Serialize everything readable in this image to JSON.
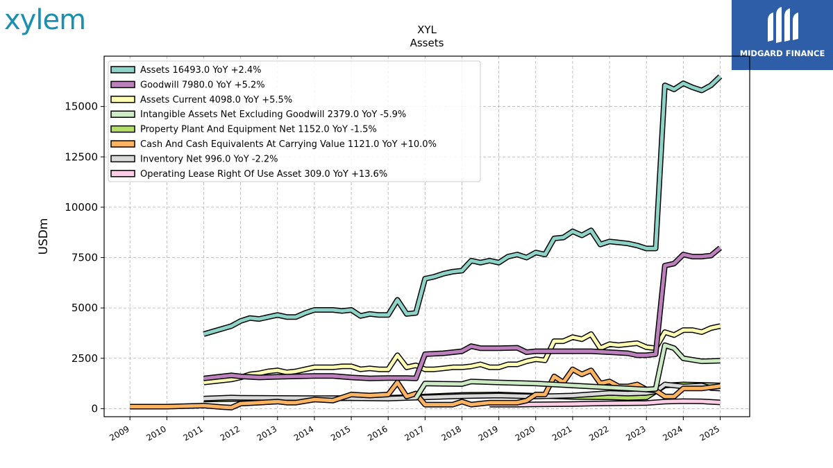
{
  "brand": {
    "left_logo": "xylem",
    "right_logo": "MIDGARD FINANCE"
  },
  "colors": {
    "Assets": "#8dd3c7",
    "Goodwill": "#bc80bd",
    "Assets Current": "#ffffb3",
    "Intangible": "#ccebc5",
    "PPE": "#b3de69",
    "Cash": "#fdb462",
    "Inventory": "#d9d9d9",
    "Lease": "#fccde5"
  },
  "chart_data": {
    "type": "line",
    "title": "XYL",
    "subtitle": "Assets",
    "xlabel": "",
    "ylabel": "USDm",
    "xlim": [
      2008.3,
      2025.8
    ],
    "ylim": [
      -400,
      17500
    ],
    "grid": true,
    "legend_position": "top-left",
    "x_ticks": [
      "2009",
      "2010",
      "2011",
      "2012",
      "2013",
      "2014",
      "2015",
      "2016",
      "2017",
      "2018",
      "2019",
      "2020",
      "2021",
      "2022",
      "2023",
      "2024",
      "2025"
    ],
    "y_ticks": [
      "0",
      "2500",
      "5000",
      "7500",
      "10000",
      "12500",
      "15000"
    ],
    "series": [
      {
        "name": "Assets",
        "legend": "Assets  16493.0 YoY +2.4%",
        "color": "#8dd3c7",
        "x": [
          2011.0,
          2011.75,
          2012.0,
          2012.25,
          2012.5,
          2012.75,
          2013.0,
          2013.25,
          2013.5,
          2013.75,
          2014.0,
          2014.25,
          2014.5,
          2014.75,
          2015.0,
          2015.25,
          2015.5,
          2015.75,
          2016.0,
          2016.25,
          2016.5,
          2016.75,
          2017.0,
          2017.25,
          2017.5,
          2017.75,
          2018.0,
          2018.25,
          2018.5,
          2018.75,
          2019.0,
          2019.25,
          2019.5,
          2019.75,
          2020.0,
          2020.25,
          2020.5,
          2020.75,
          2021.0,
          2021.25,
          2021.5,
          2021.75,
          2022.0,
          2022.25,
          2022.5,
          2022.75,
          2023.0,
          2023.25,
          2023.5,
          2023.75,
          2024.0,
          2024.25,
          2024.5,
          2024.75,
          2025.0
        ],
        "values": [
          3700,
          4100,
          4350,
          4500,
          4450,
          4550,
          4650,
          4550,
          4550,
          4750,
          4900,
          4900,
          4900,
          4850,
          4900,
          4600,
          4700,
          4650,
          4650,
          5400,
          4700,
          4750,
          6450,
          6550,
          6700,
          6800,
          6850,
          7350,
          7250,
          7350,
          7250,
          7550,
          7650,
          7500,
          7750,
          7650,
          8450,
          8500,
          8800,
          8600,
          8850,
          8150,
          8300,
          8250,
          8200,
          8100,
          7950,
          7950,
          16050,
          15850,
          16150,
          15950,
          15800,
          16050,
          16493
        ]
      },
      {
        "name": "Goodwill",
        "legend": "Goodwill  7980.0 YoY +5.2%",
        "color": "#bc80bd",
        "x": [
          2011.0,
          2011.75,
          2012.0,
          2012.5,
          2013.0,
          2013.5,
          2014.0,
          2014.5,
          2015.0,
          2015.5,
          2016.0,
          2016.5,
          2016.75,
          2017.0,
          2017.5,
          2018.0,
          2018.25,
          2018.5,
          2019.0,
          2019.5,
          2019.75,
          2020.0,
          2020.5,
          2021.0,
          2021.5,
          2022.0,
          2022.5,
          2022.75,
          2023.0,
          2023.25,
          2023.5,
          2023.75,
          2024.0,
          2024.25,
          2024.5,
          2024.75,
          2025.0
        ],
        "values": [
          1500,
          1650,
          1600,
          1550,
          1580,
          1600,
          1620,
          1620,
          1550,
          1500,
          1520,
          1520,
          1500,
          2700,
          2750,
          2850,
          3100,
          3000,
          3000,
          3020,
          2800,
          2850,
          2850,
          2850,
          2850,
          2800,
          2750,
          2650,
          2650,
          2700,
          7100,
          7200,
          7650,
          7550,
          7550,
          7600,
          7980
        ]
      },
      {
        "name": "Assets Current",
        "legend": "Assets Current  4098.0 YoY +5.5%",
        "color": "#ffffb3",
        "x": [
          2011.0,
          2011.75,
          2012.0,
          2012.25,
          2012.5,
          2012.75,
          2013.0,
          2013.25,
          2013.5,
          2013.75,
          2014.0,
          2014.25,
          2014.5,
          2014.75,
          2015.0,
          2015.25,
          2015.5,
          2015.75,
          2016.0,
          2016.25,
          2016.5,
          2016.75,
          2017.0,
          2017.25,
          2017.5,
          2017.75,
          2018.0,
          2018.25,
          2018.5,
          2018.75,
          2019.0,
          2019.25,
          2019.5,
          2019.75,
          2020.0,
          2020.25,
          2020.5,
          2020.75,
          2021.0,
          2021.25,
          2021.5,
          2021.75,
          2022.0,
          2022.25,
          2022.5,
          2022.75,
          2023.0,
          2023.25,
          2023.5,
          2023.75,
          2024.0,
          2024.25,
          2024.5,
          2024.75,
          2025.0
        ],
        "values": [
          1300,
          1450,
          1550,
          1700,
          1750,
          1850,
          1900,
          1800,
          1850,
          1950,
          2050,
          2050,
          2050,
          2100,
          2100,
          1950,
          2000,
          1950,
          1950,
          2650,
          2050,
          2150,
          1950,
          1950,
          2000,
          2050,
          2050,
          2100,
          2200,
          2050,
          2050,
          2200,
          2200,
          2350,
          2450,
          2400,
          3350,
          3350,
          3550,
          3450,
          3700,
          3000,
          3200,
          3150,
          3200,
          3250,
          3050,
          3000,
          3800,
          3650,
          3900,
          3900,
          3800,
          4000,
          4098
        ]
      },
      {
        "name": "Intangible Assets Net Excluding Goodwill",
        "legend": "Intangible Assets Net Excluding Goodwill  2379.0 YoY -5.9%",
        "color": "#ccebc5",
        "x": [
          2016.75,
          2017.0,
          2018.0,
          2018.25,
          2019.0,
          2020.0,
          2021.0,
          2022.0,
          2022.5,
          2023.0,
          2023.25,
          2023.5,
          2023.75,
          2024.0,
          2024.5,
          2025.0
        ],
        "values": [
          520,
          1250,
          1220,
          1350,
          1300,
          1250,
          1150,
          1050,
          1000,
          950,
          980,
          3150,
          3000,
          2500,
          2350,
          2379
        ]
      },
      {
        "name": "Property Plant And Equipment Net",
        "legend": "Property Plant And Equipment Net  1152.0 YoY -1.5%",
        "color": "#b3de69",
        "x": [
          2011.0,
          2012.0,
          2013.0,
          2014.0,
          2015.0,
          2016.0,
          2017.0,
          2018.0,
          2019.0,
          2020.0,
          2021.0,
          2022.0,
          2022.5,
          2023.0,
          2023.5,
          2024.0,
          2024.5,
          2025.0
        ],
        "values": [
          450,
          480,
          500,
          510,
          520,
          540,
          600,
          680,
          700,
          640,
          580,
          560,
          530,
          560,
          1150,
          1200,
          1180,
          1152
        ]
      },
      {
        "name": "Cash And Cash Equivalents At Carrying Value",
        "legend": "Cash And Cash Equivalents At Carrying Value  1121.0 YoY +10.0%",
        "color": "#fdb462",
        "x": [
          2009.0,
          2010.0,
          2011.0,
          2011.5,
          2011.75,
          2012.0,
          2012.5,
          2013.0,
          2013.25,
          2013.5,
          2014.0,
          2014.5,
          2015.0,
          2015.5,
          2016.0,
          2016.25,
          2016.5,
          2016.75,
          2017.0,
          2017.5,
          2017.75,
          2018.0,
          2018.25,
          2018.5,
          2018.75,
          2019.0,
          2019.5,
          2019.75,
          2020.0,
          2020.25,
          2020.5,
          2020.75,
          2021.0,
          2021.25,
          2021.5,
          2021.75,
          2022.0,
          2022.25,
          2022.5,
          2022.75,
          2023.0,
          2023.25,
          2023.5,
          2023.75,
          2024.0,
          2024.5,
          2025.0
        ],
        "values": [
          100,
          100,
          150,
          80,
          50,
          250,
          300,
          350,
          300,
          300,
          450,
          400,
          700,
          650,
          700,
          1300,
          600,
          750,
          200,
          200,
          200,
          350,
          200,
          250,
          300,
          300,
          300,
          400,
          700,
          700,
          1600,
          1300,
          1950,
          1700,
          1900,
          1250,
          1350,
          1100,
          1100,
          1200,
          950,
          900,
          600,
          600,
          1000,
          1000,
          1121
        ]
      },
      {
        "name": "Inventory Net",
        "legend": "Inventory Net  996.0 YoY -2.2%",
        "color": "#d9d9d9",
        "x": [
          2011.0,
          2011.75,
          2012.0,
          2013.0,
          2014.0,
          2015.0,
          2016.0,
          2017.0,
          2018.0,
          2019.0,
          2020.0,
          2021.0,
          2022.0,
          2022.5,
          2023.0,
          2023.25,
          2023.5,
          2024.0,
          2024.5,
          2024.75,
          2025.0
        ],
        "values": [
          500,
          550,
          540,
          530,
          520,
          520,
          500,
          560,
          620,
          650,
          600,
          650,
          780,
          750,
          780,
          850,
          1200,
          1100,
          1150,
          1020,
          996
        ]
      },
      {
        "name": "Operating Lease Right Of Use Asset",
        "legend": "Operating Lease Right Of Use Asset  309.0 YoY +13.6%",
        "color": "#fccde5",
        "x": [
          2018.75,
          2019.5,
          2020.0,
          2020.5,
          2021.0,
          2021.5,
          2022.0,
          2022.5,
          2023.0,
          2023.5,
          2024.0,
          2024.5,
          2025.0
        ],
        "values": [
          200,
          200,
          210,
          220,
          230,
          250,
          260,
          270,
          280,
          350,
          370,
          360,
          309
        ]
      }
    ]
  }
}
